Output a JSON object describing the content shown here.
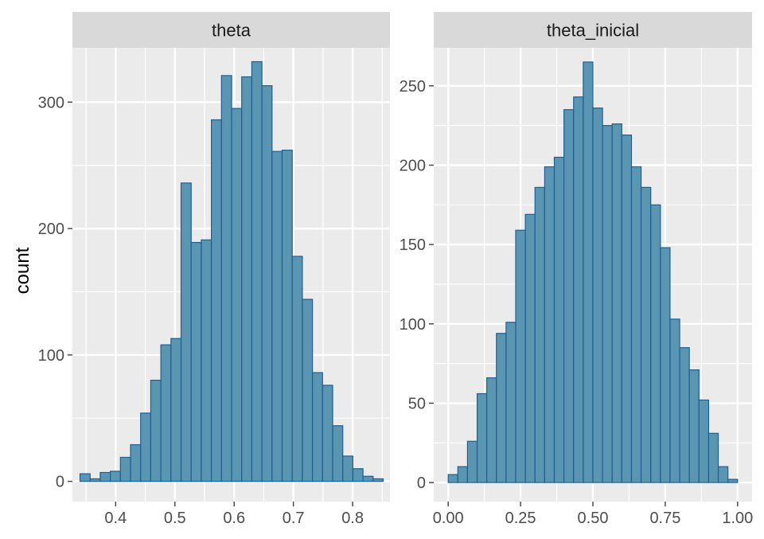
{
  "chart_data": {
    "type": "bar",
    "ylabel": "count",
    "colors": {
      "panel_bg": "#EBEBEB",
      "strip_bg": "#D9D9D9",
      "grid": "#FFFFFF",
      "bar_fill": "#5A95B2",
      "bar_stroke": "#1F5F92",
      "tick": "#4D4D4D"
    },
    "panels": [
      {
        "strip": "theta",
        "xlim": [
          0.327,
          0.863
        ],
        "ylim": [
          -16,
          343
        ],
        "xticks": [
          {
            "value": 0.4,
            "label": "0.4"
          },
          {
            "value": 0.5,
            "label": "0.5"
          },
          {
            "value": 0.6,
            "label": "0.6"
          },
          {
            "value": 0.7,
            "label": "0.7"
          },
          {
            "value": 0.8,
            "label": "0.8"
          }
        ],
        "yticks": [
          {
            "value": 0,
            "label": "0"
          },
          {
            "value": 100,
            "label": "100"
          },
          {
            "value": 200,
            "label": "200"
          },
          {
            "value": 300,
            "label": "300"
          }
        ],
        "bins_start": 0.3398,
        "bin_width": 0.01706,
        "counts": [
          6,
          2,
          7,
          8,
          19,
          29,
          54,
          80,
          108,
          113,
          236,
          189,
          191,
          286,
          321,
          295,
          320,
          332,
          313,
          261,
          262,
          178,
          144,
          86,
          76,
          44,
          20,
          10,
          4,
          2
        ]
      },
      {
        "strip": "theta_inicial",
        "xlim": [
          -0.05,
          1.05
        ],
        "ylim": [
          -12,
          274
        ],
        "xticks": [
          {
            "value": 0.0,
            "label": "0.00"
          },
          {
            "value": 0.25,
            "label": "0.25"
          },
          {
            "value": 0.5,
            "label": "0.50"
          },
          {
            "value": 0.75,
            "label": "0.75"
          },
          {
            "value": 1.0,
            "label": "1.00"
          }
        ],
        "yticks": [
          {
            "value": 0,
            "label": "0"
          },
          {
            "value": 50,
            "label": "50"
          },
          {
            "value": 100,
            "label": "100"
          },
          {
            "value": 150,
            "label": "150"
          },
          {
            "value": 200,
            "label": "200"
          },
          {
            "value": 250,
            "label": "250"
          }
        ],
        "bins_start": 0.0,
        "bin_width": 0.03333,
        "counts": [
          5,
          10,
          26,
          56,
          66,
          94,
          101,
          159,
          169,
          186,
          199,
          205,
          235,
          243,
          265,
          236,
          225,
          226,
          219,
          199,
          186,
          175,
          148,
          103,
          85,
          71,
          52,
          31,
          10,
          2
        ]
      }
    ]
  }
}
